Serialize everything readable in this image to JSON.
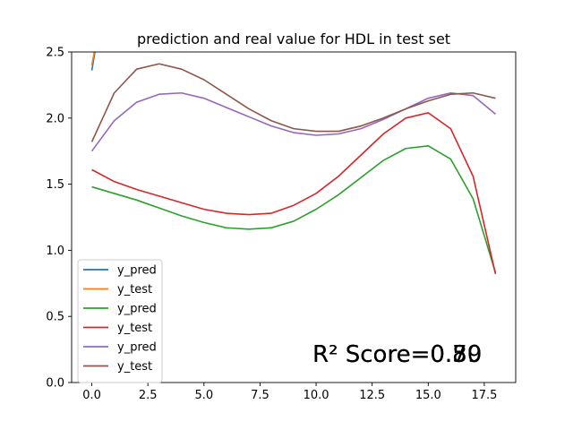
{
  "chart_data": {
    "type": "line",
    "title": "prediction and real value for HDL in test set",
    "xlabel": "",
    "ylabel": "",
    "xlim": [
      -0.9,
      18.9
    ],
    "ylim": [
      0,
      2.5
    ],
    "xticks": [
      0,
      2.5,
      5,
      7.5,
      10,
      12.5,
      15,
      17.5
    ],
    "xtick_labels": [
      "0.0",
      "2.5",
      "5.0",
      "7.5",
      "10.0",
      "12.5",
      "15.0",
      "17.5"
    ],
    "yticks": [
      0,
      0.5,
      1,
      1.5,
      2,
      2.5
    ],
    "ytick_labels": [
      "0.0",
      "0.5",
      "1.0",
      "1.5",
      "2.0",
      "2.5"
    ],
    "grid": false,
    "legend_position": "lower-left",
    "series": [
      {
        "name": "y_pred",
        "color": "#1f77b4",
        "x": [
          0,
          0.1,
          0.2
        ],
        "y": [
          2.36,
          2.46,
          2.56
        ]
      },
      {
        "name": "y_test",
        "color": "#ff7f0e",
        "x": [
          0,
          0.1,
          0.2
        ],
        "y": [
          2.4,
          2.49,
          2.58
        ]
      },
      {
        "name": "y_pred",
        "color": "#2ca02c",
        "x": [
          0,
          1,
          2,
          3,
          4,
          5,
          6,
          7,
          8,
          9,
          10,
          11,
          12,
          13,
          14,
          15,
          16,
          17,
          18
        ],
        "y": [
          1.48,
          1.43,
          1.38,
          1.32,
          1.26,
          1.21,
          1.17,
          1.16,
          1.17,
          1.22,
          1.31,
          1.42,
          1.55,
          1.68,
          1.77,
          1.79,
          1.69,
          1.39,
          0.83
        ]
      },
      {
        "name": "y_test",
        "color": "#d62728",
        "x": [
          0,
          1,
          2,
          3,
          4,
          5,
          6,
          7,
          8,
          9,
          10,
          11,
          12,
          13,
          14,
          15,
          16,
          17,
          18
        ],
        "y": [
          1.61,
          1.52,
          1.46,
          1.41,
          1.36,
          1.31,
          1.28,
          1.27,
          1.28,
          1.34,
          1.43,
          1.56,
          1.72,
          1.88,
          2.0,
          2.04,
          1.92,
          1.56,
          0.82
        ]
      },
      {
        "name": "y_pred",
        "color": "#9467bd",
        "x": [
          0,
          1,
          2,
          3,
          4,
          5,
          6,
          7,
          8,
          9,
          10,
          11,
          12,
          13,
          14,
          15,
          16,
          17,
          18
        ],
        "y": [
          1.75,
          1.98,
          2.12,
          2.18,
          2.19,
          2.15,
          2.08,
          2.01,
          1.94,
          1.89,
          1.87,
          1.88,
          1.92,
          1.99,
          2.07,
          2.15,
          2.19,
          2.17,
          2.03
        ]
      },
      {
        "name": "y_test",
        "color": "#8c564b",
        "x": [
          0,
          1,
          2,
          3,
          4,
          5,
          6,
          7,
          8,
          9,
          10,
          11,
          12,
          13,
          14,
          15,
          16,
          17,
          18
        ],
        "y": [
          1.82,
          2.19,
          2.37,
          2.41,
          2.37,
          2.29,
          2.18,
          2.07,
          1.98,
          1.92,
          1.9,
          1.9,
          1.94,
          2.0,
          2.07,
          2.13,
          2.18,
          2.19,
          2.15
        ]
      }
    ],
    "annotations": [
      {
        "text": "R² Score=0.70"
      },
      {
        "text": "R² Score=0.59"
      },
      {
        "text": "R² Score=0.80"
      }
    ]
  }
}
